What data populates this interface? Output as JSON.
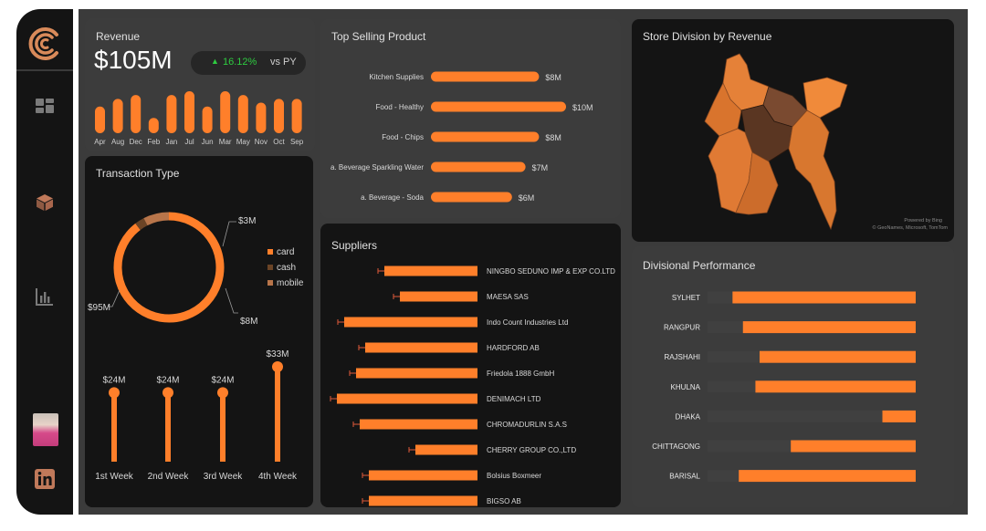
{
  "revenue": {
    "title": "Revenue",
    "value": "$105M",
    "growth": "16.12%",
    "vs_label": "vs PY"
  },
  "transaction": {
    "title": "Transaction Type",
    "legend": [
      "card",
      "cash",
      "mobile"
    ],
    "labels": {
      "card": "$95M",
      "cash": "$3M",
      "mobile": "$8M"
    }
  },
  "weekly": {
    "labels": [
      "1st Week",
      "2nd Week",
      "3rd Week",
      "4th Week"
    ],
    "values_text": [
      "$24M",
      "$24M",
      "$24M",
      "$33M"
    ]
  },
  "products": {
    "title": "Top Selling Product"
  },
  "suppliers": {
    "title": "Suppliers"
  },
  "map": {
    "title": "Store Division by Revenue",
    "credit_line1": "Powered by Bing",
    "credit_line2": "© GeoNames, Microsoft, TomTom"
  },
  "divisions": {
    "title": "Divisional Performance"
  },
  "colors": {
    "accent": "#ff7f2a",
    "track": "#404040",
    "positive": "#2ecc40",
    "panel_dark": "#141414"
  },
  "chart_data": [
    {
      "type": "bar",
      "name": "revenue-by-month",
      "categories": [
        "Apr",
        "Aug",
        "Dec",
        "Feb",
        "Jan",
        "Jul",
        "Jun",
        "Mar",
        "May",
        "Nov",
        "Oct",
        "Sep"
      ],
      "values": [
        7,
        9,
        10,
        4,
        10,
        11,
        7,
        11,
        10,
        8,
        9,
        9
      ],
      "title": "",
      "xlabel": "",
      "ylabel": ""
    },
    {
      "type": "pie",
      "name": "transaction-type",
      "categories": [
        "card",
        "cash",
        "mobile"
      ],
      "values": [
        95,
        3,
        8
      ],
      "title": "Transaction Type"
    },
    {
      "type": "bar",
      "name": "weekly-revenue",
      "categories": [
        "1st Week",
        "2nd Week",
        "3rd Week",
        "4th Week"
      ],
      "values": [
        24,
        24,
        24,
        33
      ],
      "ylim": [
        0,
        33
      ]
    },
    {
      "type": "bar",
      "name": "top-selling-product",
      "orientation": "horizontal",
      "categories": [
        "Kitchen Supplies",
        "Food - Healthy",
        "Food - Chips",
        "a. Beverage Sparkling Water",
        "a. Beverage - Soda"
      ],
      "values": [
        8,
        10,
        8,
        7,
        6
      ],
      "value_labels": [
        "$8M",
        "$10M",
        "$8M",
        "$7M",
        "$6M"
      ],
      "title": "Top Selling Product",
      "xlim": [
        0,
        10
      ]
    },
    {
      "type": "bar",
      "name": "suppliers",
      "orientation": "horizontal",
      "categories": [
        "NINGBO SEDUNO IMP & EXP CO.LTD",
        "MAESA SAS",
        "Indo Count Industries Ltd",
        "HARDFORD AB",
        "Friedola 1888 GmbH",
        "DENIMACH LTD",
        "CHROMADURLIN S.A.S",
        "CHERRY GROUP CO.,LTD",
        "Bolsius Boxmeer",
        "BIGSO AB"
      ],
      "values": [
        10.2,
        8.5,
        14.6,
        12.3,
        13.3,
        15.4,
        12.9,
        6.8,
        11.9,
        11.9
      ],
      "xlim": [
        0,
        16
      ],
      "title": "Suppliers"
    },
    {
      "type": "bar",
      "name": "divisional-performance",
      "orientation": "horizontal",
      "categories": [
        "SYLHET",
        "RANGPUR",
        "RAJSHAHI",
        "KHULNA",
        "DHAKA",
        "CHITTAGONG",
        "BARISAL"
      ],
      "values": [
        88,
        83,
        75,
        77,
        16,
        60,
        85
      ],
      "unit": "% of track",
      "title": "Divisional Performance"
    }
  ]
}
